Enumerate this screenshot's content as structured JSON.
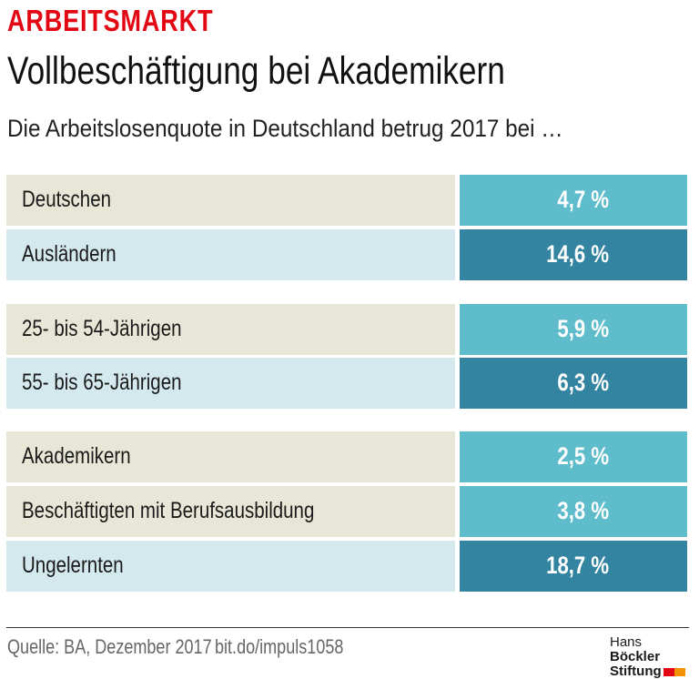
{
  "header": {
    "kicker": "ARBEITSMARKT",
    "title": "Vollbeschäftigung bei Akademikern",
    "subtitle": "Die Arbeitslosenquote in Deutschland betrug 2017 bei …"
  },
  "colors": {
    "kicker": "#e30613",
    "label_beige": "#e8e6d6",
    "label_blue": "#d4e9ee",
    "value_light": "#5fbccb",
    "value_dark": "#3384a0"
  },
  "chart_data": {
    "type": "table",
    "groups": [
      {
        "rows": [
          {
            "label": "Deutschen",
            "value": "4,7 %",
            "shade": "light"
          },
          {
            "label": "Ausländern",
            "value": "14,6 %",
            "shade": "dark"
          }
        ]
      },
      {
        "rows": [
          {
            "label": "25- bis 54-Jährigen",
            "value": "5,9 %",
            "shade": "light"
          },
          {
            "label": "55- bis 65-Jährigen",
            "value": "6,3 %",
            "shade": "dark"
          }
        ]
      },
      {
        "rows": [
          {
            "label": "Akademikern",
            "value": "2,5 %",
            "shade": "light"
          },
          {
            "label": "Beschäftigten mit Berufsausbildung",
            "value": "3,8 %",
            "shade": "light"
          },
          {
            "label": "Ungelernten",
            "value": "18,7 %",
            "shade": "dark"
          }
        ]
      }
    ]
  },
  "footer": {
    "source": "Quelle: BA, Dezember 2017",
    "link": "bit.do/impuls1058",
    "logo_line1_a": "Hans",
    "logo_line1_b": "Böckler",
    "logo_line2": "Stiftung"
  }
}
